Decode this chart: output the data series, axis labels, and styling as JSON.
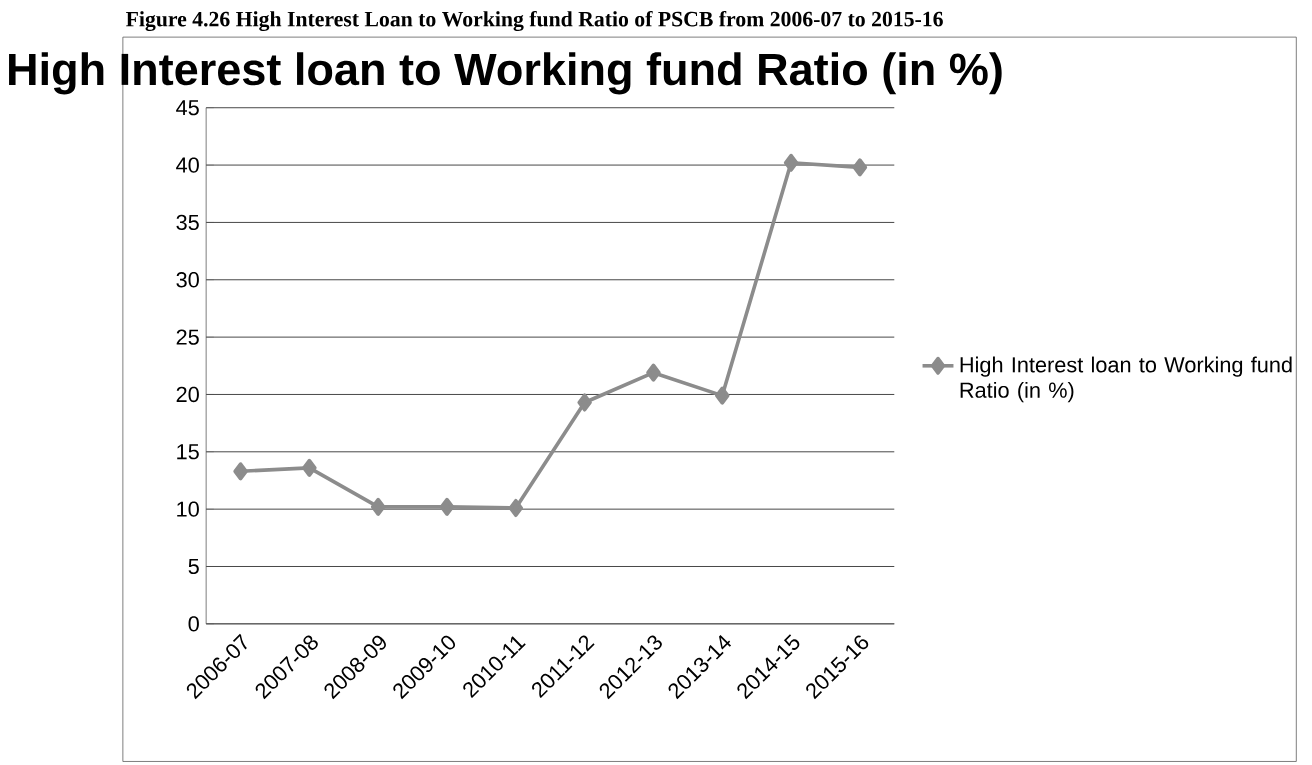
{
  "chart_data": {
    "type": "line",
    "title": "High Interest loan to Working fund Ratio (in %)",
    "annotations": [
      "Figure 4.26 High Interest Loan to Working fund Ratio of PSCB from 2006-07 to 2015-16"
    ],
    "categories": [
      "2006-07",
      "2007-08",
      "2008-09",
      "2009-10",
      "2010-11",
      "2011-12",
      "2012-13",
      "2013-14",
      "2014-15",
      "2015-16"
    ],
    "series": [
      {
        "name": "High Interest loan to Working fund Ratio (in %)",
        "color": "#8c8c8c",
        "values": [
          13.3,
          13.6,
          10.2,
          10.2,
          10.1,
          19.3,
          21.9,
          19.9,
          40.2,
          39.8
        ]
      }
    ],
    "ylim": [
      0,
      45
    ],
    "yticks": [
      0,
      5,
      10,
      15,
      20,
      25,
      30,
      35,
      40,
      45
    ],
    "grid": "y",
    "legend": "right",
    "marker": "diamond",
    "line_style": "solid"
  }
}
